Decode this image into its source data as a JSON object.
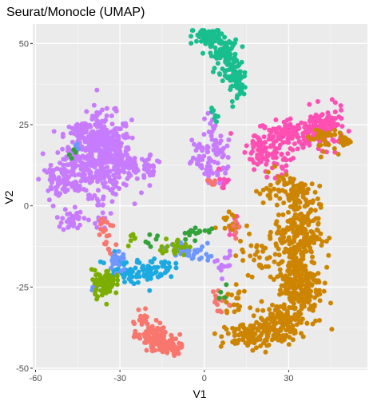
{
  "chart_data": {
    "type": "scatter",
    "title": "Seurat/Monocle (UMAP)",
    "xlabel": "V1",
    "ylabel": "V2",
    "xlim": [
      -61,
      58
    ],
    "ylim": [
      -50.5,
      56
    ],
    "x_ticks": [
      -60,
      -30,
      0,
      30
    ],
    "y_ticks": [
      -50,
      -25,
      0,
      25,
      50
    ],
    "x_tick_labels": [
      "-60",
      "-30",
      "0",
      "30"
    ],
    "y_tick_labels": [
      "-50",
      "-25",
      "0",
      "25",
      "50"
    ],
    "grid": true,
    "panel_background": "#EBEBEB",
    "legend": "none",
    "clusters": [
      {
        "color": "#C77CFF",
        "blobs": [
          {
            "cx": -36,
            "cy": 16,
            "sx": 5,
            "sy": 6,
            "n": 420
          },
          {
            "cx": -46,
            "cy": 12,
            "sx": 4,
            "sy": 4,
            "n": 90
          },
          {
            "cx": -52,
            "cy": 8,
            "sx": 3,
            "sy": 2,
            "n": 50
          },
          {
            "cx": -44,
            "cy": 22,
            "sx": 3,
            "sy": 2,
            "n": 40
          },
          {
            "cx": -26,
            "cy": 12,
            "sx": 3,
            "sy": 2,
            "n": 50
          },
          {
            "cx": -19,
            "cy": 12,
            "sx": 2,
            "sy": 2,
            "n": 25
          },
          {
            "cx": -47,
            "cy": -4,
            "sx": 1.8,
            "sy": 2,
            "n": 35
          },
          {
            "cx": -36,
            "cy": -1,
            "sx": 1.5,
            "sy": 3,
            "n": 20
          },
          {
            "cx": -2,
            "cy": 15,
            "sx": 3,
            "sy": 3,
            "n": 40
          },
          {
            "cx": 5,
            "cy": 17,
            "sx": 2,
            "sy": 3,
            "n": 25
          },
          {
            "cx": 4,
            "cy": 10,
            "sx": 2,
            "sy": 2,
            "n": 20
          },
          {
            "cx": 2,
            "cy": 26,
            "sx": 1,
            "sy": 2,
            "n": 10
          },
          {
            "cx": 7,
            "cy": -18,
            "sx": 1.5,
            "sy": 2,
            "n": 15
          }
        ]
      },
      {
        "color": "#19BE8E",
        "blobs": [
          {
            "cx": 2,
            "cy": 52,
            "sx": 3,
            "sy": 1.5,
            "n": 80
          },
          {
            "cx": 7,
            "cy": 46,
            "sx": 2.5,
            "sy": 2.5,
            "n": 70
          },
          {
            "cx": 11,
            "cy": 40,
            "sx": 2,
            "sy": 3,
            "n": 60
          },
          {
            "cx": 13,
            "cy": 36,
            "sx": 1,
            "sy": 1,
            "n": 10
          },
          {
            "cx": 4,
            "cy": 27,
            "sx": 1,
            "sy": 1.5,
            "n": 8
          }
        ]
      },
      {
        "color": "#FF4FB3",
        "blobs": [
          {
            "cx": 32,
            "cy": 22,
            "sx": 6,
            "sy": 2,
            "n": 140
          },
          {
            "cx": 42,
            "cy": 24,
            "sx": 4,
            "sy": 3,
            "n": 110
          },
          {
            "cx": 20,
            "cy": 17,
            "sx": 2.5,
            "sy": 3,
            "n": 50
          },
          {
            "cx": 25,
            "cy": 13,
            "sx": 3,
            "sy": 2,
            "n": 30
          },
          {
            "cx": 7,
            "cy": 8,
            "sx": 1.5,
            "sy": 2,
            "n": 8
          },
          {
            "cx": 11,
            "cy": -6,
            "sx": 1.5,
            "sy": 2,
            "n": 10
          }
        ]
      },
      {
        "color": "#CD8500",
        "blobs": [
          {
            "cx": 33,
            "cy": -8,
            "sx": 4,
            "sy": 7,
            "n": 260
          },
          {
            "cx": 34,
            "cy": -25,
            "sx": 4,
            "sy": 6,
            "n": 220
          },
          {
            "cx": 26,
            "cy": -36,
            "sx": 4,
            "sy": 3,
            "n": 120
          },
          {
            "cx": 16,
            "cy": -40,
            "sx": 5,
            "sy": 2,
            "n": 90
          },
          {
            "cx": 31,
            "cy": 5,
            "sx": 3,
            "sy": 2,
            "n": 60
          },
          {
            "cx": 42,
            "cy": 21,
            "sx": 2.5,
            "sy": 2,
            "n": 35
          },
          {
            "cx": 49,
            "cy": 20,
            "sx": 1.5,
            "sy": 1,
            "n": 15
          },
          {
            "cx": 10,
            "cy": -5,
            "sx": 3,
            "sy": 2,
            "n": 15
          },
          {
            "cx": 18,
            "cy": -15,
            "sx": 3,
            "sy": 3,
            "n": 25
          },
          {
            "cx": 10,
            "cy": -30,
            "sx": 3,
            "sy": 3,
            "n": 20
          },
          {
            "cx": 22,
            "cy": 5,
            "sx": 2,
            "sy": 1.5,
            "n": 10
          }
        ]
      },
      {
        "color": "#F8766D",
        "blobs": [
          {
            "cx": -19,
            "cy": -40,
            "sx": 3,
            "sy": 2,
            "n": 70
          },
          {
            "cx": -15,
            "cy": -43,
            "sx": 2.5,
            "sy": 1.5,
            "n": 50
          },
          {
            "cx": -10,
            "cy": -43,
            "sx": 2,
            "sy": 1.5,
            "n": 25
          },
          {
            "cx": -22,
            "cy": -35,
            "sx": 1,
            "sy": 2,
            "n": 12
          },
          {
            "cx": -35,
            "cy": -5,
            "sx": 1.5,
            "sy": 2,
            "n": 12
          },
          {
            "cx": -34,
            "cy": -12,
            "sx": 1.5,
            "sy": 2,
            "n": 8
          },
          {
            "cx": 5,
            "cy": -30,
            "sx": 1.5,
            "sy": 2,
            "n": 12
          },
          {
            "cx": 4,
            "cy": 8,
            "sx": 1.5,
            "sy": 1,
            "n": 6
          },
          {
            "cx": 12,
            "cy": -8,
            "sx": 1.5,
            "sy": 1.5,
            "n": 6
          }
        ]
      },
      {
        "color": "#1AA9E1",
        "blobs": [
          {
            "cx": -22,
            "cy": -20,
            "sx": 4,
            "sy": 2,
            "n": 60
          },
          {
            "cx": -31,
            "cy": -19,
            "sx": 2,
            "sy": 2,
            "n": 25
          },
          {
            "cx": -15,
            "cy": -19,
            "sx": 2,
            "sy": 1.5,
            "n": 15
          }
        ]
      },
      {
        "color": "#6E97FF",
        "blobs": [
          {
            "cx": -31,
            "cy": -17,
            "sx": 1.5,
            "sy": 2,
            "n": 25
          },
          {
            "cx": -7,
            "cy": -14,
            "sx": 3,
            "sy": 1.5,
            "n": 30
          },
          {
            "cx": -38,
            "cy": -25,
            "sx": 1,
            "sy": 1,
            "n": 5
          },
          {
            "cx": 0,
            "cy": -15,
            "sx": 1.5,
            "sy": 2,
            "n": 10
          },
          {
            "cx": -45,
            "cy": 17,
            "sx": 1,
            "sy": 1,
            "n": 4
          }
        ]
      },
      {
        "color": "#7CAE00",
        "blobs": [
          {
            "cx": -36,
            "cy": -24,
            "sx": 2,
            "sy": 2,
            "n": 60
          },
          {
            "cx": -33,
            "cy": -23,
            "sx": 1.5,
            "sy": 1.5,
            "n": 20
          },
          {
            "cx": -11,
            "cy": -13,
            "sx": 2.5,
            "sy": 1.5,
            "n": 25
          },
          {
            "cx": -25,
            "cy": -10,
            "sx": 1.5,
            "sy": 1,
            "n": 6
          }
        ]
      },
      {
        "color": "#32A23A",
        "blobs": [
          {
            "cx": -4,
            "cy": -8,
            "sx": 2,
            "sy": 1,
            "n": 15
          },
          {
            "cx": -18,
            "cy": -10,
            "sx": 1.5,
            "sy": 1,
            "n": 6
          },
          {
            "cx": -46,
            "cy": 16,
            "sx": 1,
            "sy": 1,
            "n": 4
          },
          {
            "cx": 7,
            "cy": -27,
            "sx": 1,
            "sy": 1,
            "n": 4
          },
          {
            "cx": 2,
            "cy": -8,
            "sx": 1,
            "sy": 1,
            "n": 4
          }
        ]
      }
    ]
  }
}
